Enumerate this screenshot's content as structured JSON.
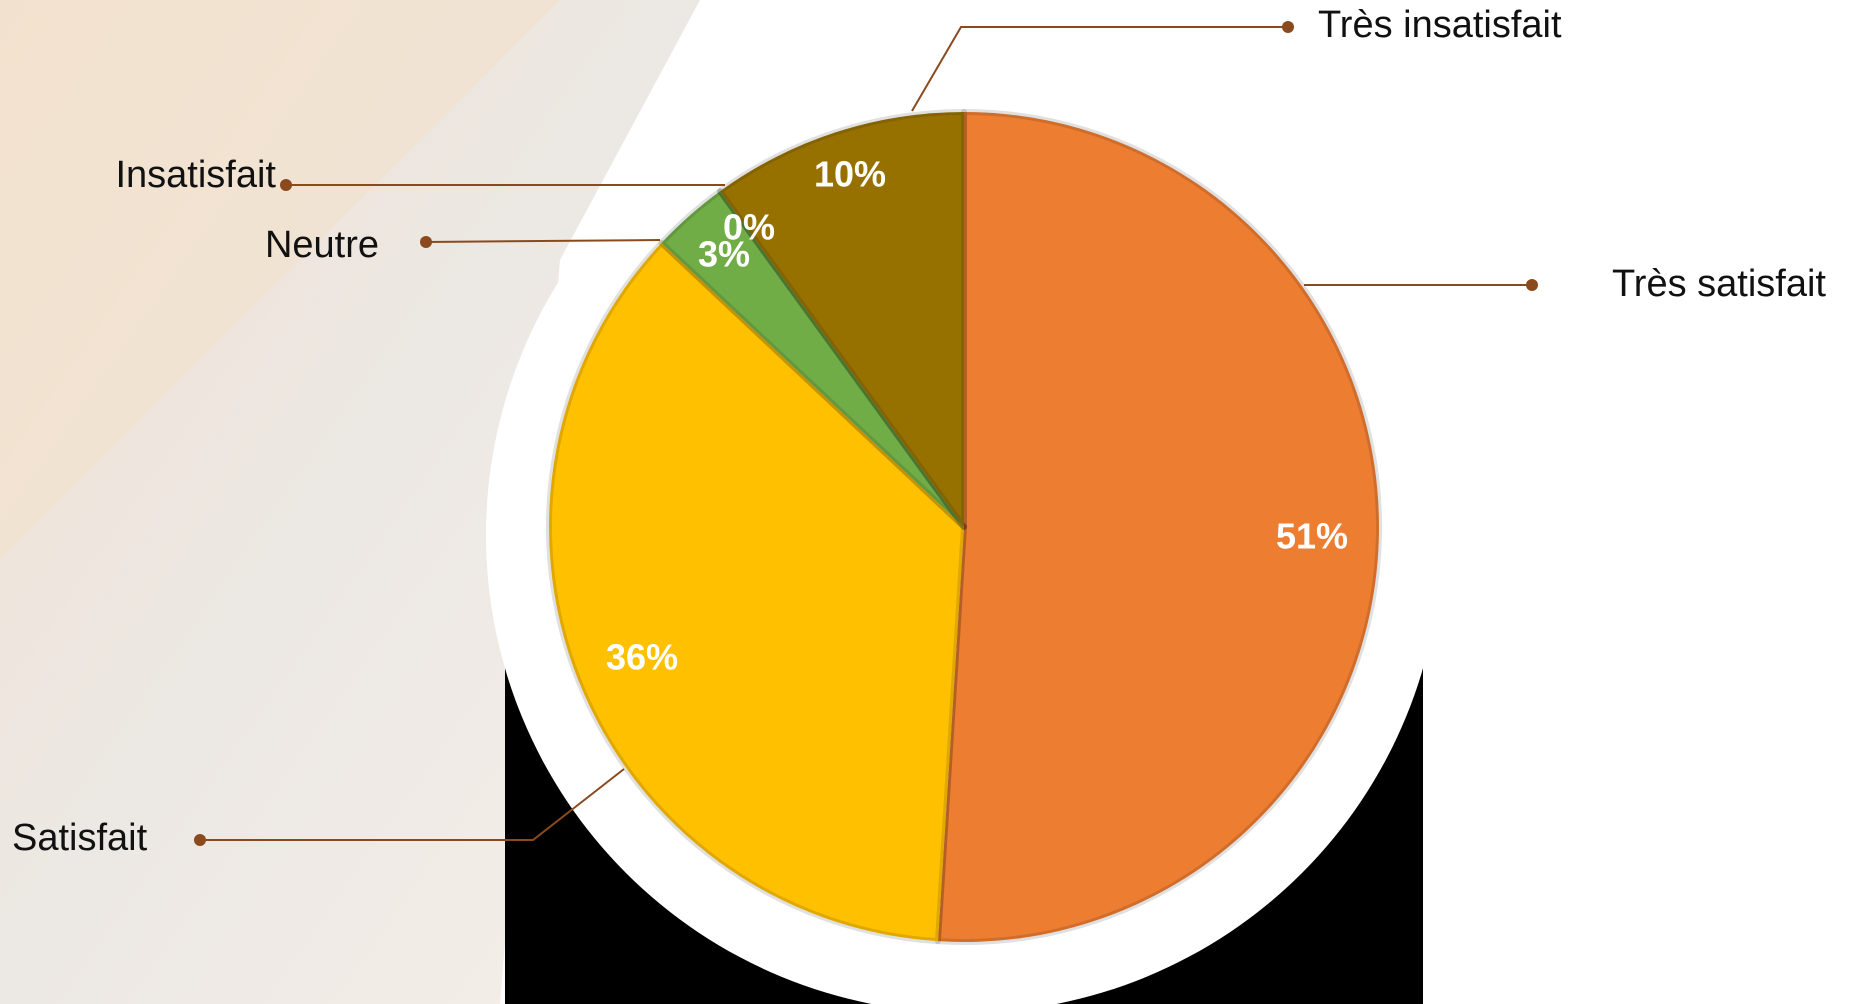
{
  "chart_data": {
    "type": "pie",
    "categories": [
      "Très satisfait",
      "Satisfait",
      "Neutre",
      "Insatisfait",
      "Très insatisfait"
    ],
    "values": [
      51,
      36,
      3,
      0,
      10
    ],
    "value_labels": [
      "51%",
      "36%",
      "3%",
      "0%",
      "10%"
    ],
    "colors": [
      "#ED7D31",
      "#FFC000",
      "#70AD47",
      "#5B9BD5",
      "#977100"
    ]
  }
}
